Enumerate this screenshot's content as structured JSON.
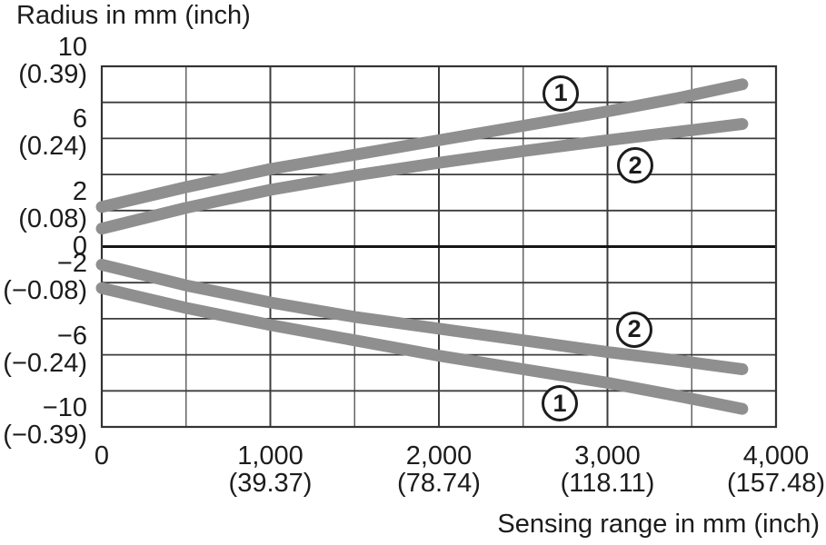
{
  "chart_data": {
    "type": "line",
    "title": "Radius in mm (inch)",
    "xlabel": "Sensing range in mm (inch)",
    "ylabel": "Radius in mm (inch)",
    "xlim": [
      0,
      4000
    ],
    "ylim": [
      -10,
      10
    ],
    "grid": "on",
    "grid_x_minor_step": 500,
    "grid_x_major_step": 1000,
    "grid_y_step": 2,
    "x_ticks": [
      {
        "label": "0",
        "sub": "",
        "value": 0
      },
      {
        "label": "1,000",
        "sub": "(39.37)",
        "value": 1000
      },
      {
        "label": "2,000",
        "sub": "(78.74)",
        "value": 2000
      },
      {
        "label": "3,000",
        "sub": "(118.11)",
        "value": 3000
      },
      {
        "label": "4,000",
        "sub": "(157.48)",
        "value": 4000
      }
    ],
    "y_ticks": [
      {
        "label": "10",
        "sub": "(0.39)",
        "value": 10
      },
      {
        "label": "6",
        "sub": "(0.24)",
        "value": 6
      },
      {
        "label": "2",
        "sub": "(0.08)",
        "value": 2
      },
      {
        "label": "0",
        "sub": "",
        "value": 0
      },
      {
        "label": "−2",
        "sub": "(−0.08)",
        "value": -2
      },
      {
        "label": "−6",
        "sub": "(−0.24)",
        "value": -6
      },
      {
        "label": "−10",
        "sub": "(−0.39)",
        "value": -10
      }
    ],
    "series": [
      {
        "name": "1 (upper)",
        "label": "1",
        "x": [
          0,
          500,
          1000,
          1500,
          2000,
          2500,
          3000,
          3400,
          3800
        ],
        "y": [
          2.2,
          3.3,
          4.3,
          5.1,
          5.9,
          6.7,
          7.5,
          8.2,
          9.0
        ]
      },
      {
        "name": "2 (upper)",
        "label": "2",
        "x": [
          0,
          500,
          1000,
          1500,
          2000,
          2500,
          3000,
          3400,
          3800
        ],
        "y": [
          1.0,
          2.15,
          3.15,
          3.95,
          4.65,
          5.3,
          5.9,
          6.35,
          6.8
        ]
      },
      {
        "name": "2 (lower)",
        "label": "2",
        "x": [
          0,
          500,
          1000,
          1500,
          2000,
          2500,
          3000,
          3400,
          3800
        ],
        "y": [
          -1.0,
          -2.15,
          -3.1,
          -3.9,
          -4.55,
          -5.2,
          -5.85,
          -6.3,
          -6.8
        ]
      },
      {
        "name": "1 (lower)",
        "label": "1",
        "x": [
          0,
          500,
          1000,
          1500,
          2000,
          2500,
          3000,
          3400,
          3800
        ],
        "y": [
          -2.3,
          -3.4,
          -4.35,
          -5.2,
          -6.05,
          -6.8,
          -7.55,
          -8.25,
          -9.0
        ]
      }
    ],
    "series_labels": [
      {
        "text": "1",
        "series": "1 (upper)",
        "x": 2723,
        "y": 8.5
      },
      {
        "text": "2",
        "series": "2 (upper)",
        "x": 3165,
        "y": 4.5
      },
      {
        "text": "2",
        "series": "2 (lower)",
        "x": 3160,
        "y": -4.6
      },
      {
        "text": "1",
        "series": "1 (lower)",
        "x": 2717,
        "y": -8.7
      }
    ],
    "legend_position": "none"
  },
  "colors": {
    "curve": "#8f8f8f",
    "grid_major": "#3c3c3c",
    "grid_minor": "#5a5a5a",
    "border": "#333333",
    "zero_line": "#161616",
    "text": "#1c1c1c",
    "badge_border": "#1c1c1c",
    "background": "#ffffff"
  }
}
